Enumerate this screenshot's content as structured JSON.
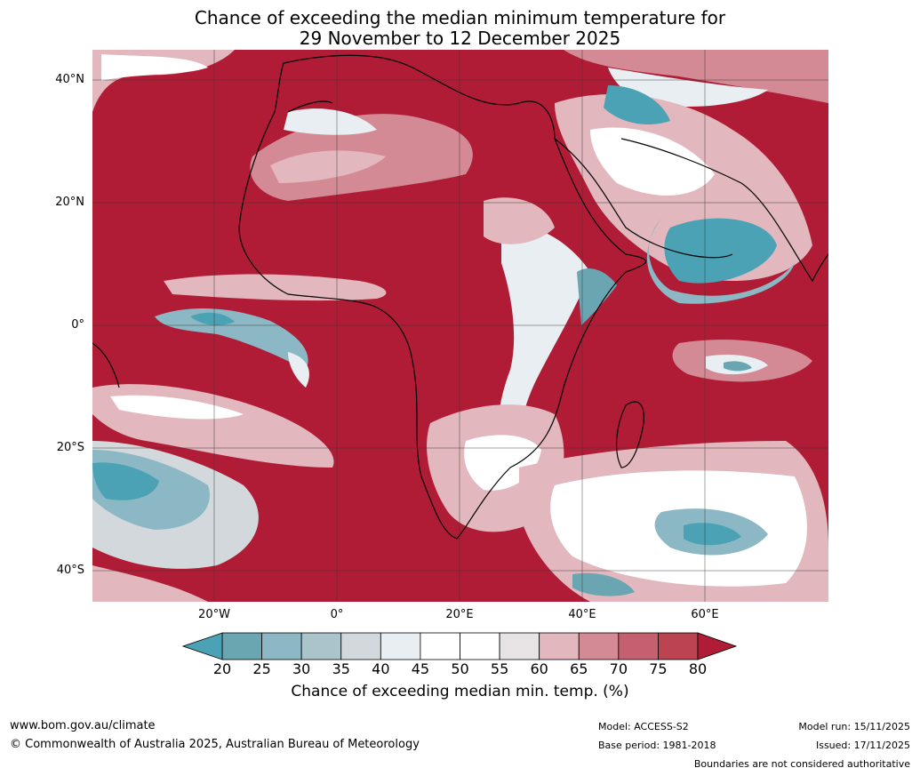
{
  "title": {
    "line1": "Chance of exceeding the median minimum temperature for",
    "line2": "29 November to 12 December 2025"
  },
  "axes": {
    "lat_ticks": [
      "40°N",
      "20°N",
      "0°",
      "20°S",
      "40°S"
    ],
    "lon_ticks": [
      "20°W",
      "0°",
      "20°E",
      "40°E",
      "60°E"
    ]
  },
  "colorbar": {
    "ticks": [
      "20",
      "25",
      "30",
      "35",
      "40",
      "45",
      "50",
      "55",
      "60",
      "65",
      "70",
      "75",
      "80"
    ],
    "colors": [
      "#4aa2b4",
      "#6aa6b2",
      "#8bb8c4",
      "#a9c4cb",
      "#d2d8db",
      "#e8eef1",
      "#ffffff",
      "#ffffff",
      "#e8e3e5",
      "#e2b7bd",
      "#d38a95",
      "#c4606f",
      "#bb4450",
      "#b01c35"
    ],
    "label": "Chance of exceeding median min. temp. (%)"
  },
  "footer": {
    "website": "www.bom.gov.au/climate",
    "copyright": "© Commonwealth of Australia 2025, Australian Bureau of Meteorology",
    "model": "Model: ACCESS-S2",
    "base_period": "Base period: 1981-2018",
    "model_run": "Model run: 15/11/2025",
    "issued": "Issued: 17/11/2025",
    "boundaries": "Boundaries are not considered authoritative"
  }
}
